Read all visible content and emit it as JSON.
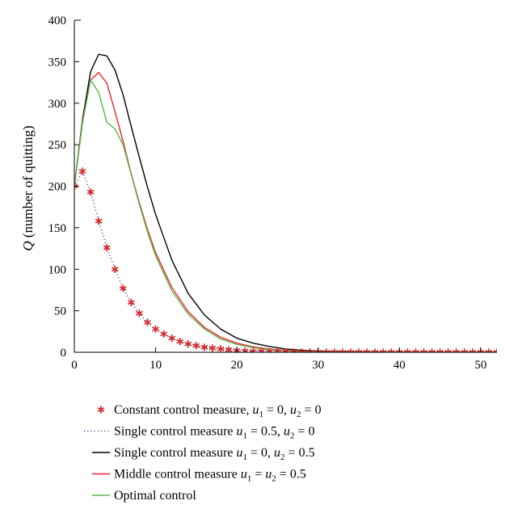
{
  "chart_data": {
    "type": "line",
    "title": "",
    "xlabel": "",
    "ylabel": "Q (number of quitting)",
    "ylabel_parts": {
      "symbol": "Q",
      "text": " (number of quitting)"
    },
    "xlim": [
      0,
      52
    ],
    "ylim": [
      0,
      400
    ],
    "xticks": [
      "0",
      "10",
      "20",
      "30",
      "40",
      "50"
    ],
    "yticks": [
      "0",
      "50",
      "100",
      "150",
      "200",
      "250",
      "300",
      "350",
      "400"
    ],
    "grid": false,
    "legend_position": "bottom",
    "series": [
      {
        "name": "Constant control measure, u1 = 0, u2 = 0",
        "legend_parts": [
          {
            "t": "Constant control measure, ",
            "s": "n"
          },
          {
            "t": "u",
            "s": "i"
          },
          {
            "t": "1",
            "s": "sub"
          },
          {
            "t": " = 0, ",
            "s": "n"
          },
          {
            "t": "u",
            "s": "i"
          },
          {
            "t": "2",
            "s": "sub"
          },
          {
            "t": " = 0",
            "s": "n"
          }
        ],
        "style": "star-markers",
        "color": "#d62728",
        "x": [
          0,
          1,
          2,
          3,
          4,
          5,
          6,
          7,
          8,
          9,
          10,
          11,
          12,
          13,
          14,
          15,
          16,
          17,
          18,
          19,
          20,
          21,
          22,
          23,
          24,
          25,
          26,
          27,
          28,
          29,
          30,
          31,
          32,
          33,
          34,
          35,
          36,
          37,
          38,
          39,
          40,
          41,
          42,
          43,
          44,
          45,
          46,
          47,
          48,
          49,
          50,
          51,
          52
        ],
        "y": [
          200,
          218,
          193,
          158,
          126,
          100,
          77,
          60,
          47,
          36,
          28,
          22,
          17,
          13,
          10,
          8,
          6,
          5,
          4,
          3,
          2,
          1.5,
          1,
          1,
          0.5,
          0.5,
          0.3,
          0.2,
          0.2,
          0.1,
          0.1,
          0,
          0,
          0,
          0,
          0,
          0,
          0,
          0,
          0,
          0,
          0,
          0,
          0,
          0,
          0,
          0,
          0,
          0,
          0,
          0,
          0,
          0
        ]
      },
      {
        "name": "Single control measure u1 = 0.5, u2 = 0",
        "legend_parts": [
          {
            "t": "Single control measure ",
            "s": "n"
          },
          {
            "t": "u",
            "s": "i"
          },
          {
            "t": "1",
            "s": "sub"
          },
          {
            "t": " = 0.5, ",
            "s": "n"
          },
          {
            "t": "u",
            "s": "i"
          },
          {
            "t": "2",
            "s": "sub"
          },
          {
            "t": " = 0",
            "s": "n"
          }
        ],
        "style": "dotted",
        "color": "#3a3aa8",
        "x": [
          0,
          1,
          2,
          3,
          4,
          5,
          6,
          7,
          8,
          9,
          10,
          11,
          12,
          13,
          14,
          15,
          16,
          17,
          18,
          19,
          20,
          21,
          22,
          23,
          24,
          25,
          26,
          27,
          28,
          29,
          30,
          31,
          32,
          33,
          34,
          35,
          36,
          37,
          38,
          39,
          40,
          41,
          42,
          43,
          44,
          45,
          46,
          47,
          48,
          49,
          50,
          51,
          52
        ],
        "y": [
          200,
          218,
          193,
          158,
          126,
          100,
          77,
          60,
          47,
          36,
          28,
          22,
          17,
          13,
          10,
          8,
          6,
          5,
          4,
          3,
          2,
          1.5,
          1,
          1,
          0.5,
          0.5,
          0.3,
          0.2,
          0.2,
          0.1,
          0.1,
          0,
          0,
          0,
          0,
          0,
          0,
          0,
          0,
          0,
          0,
          0,
          0,
          0,
          0,
          0,
          0,
          0,
          0,
          0,
          0,
          0,
          0
        ]
      },
      {
        "name": "Single control measure u1 = 0, u2 = 0.5",
        "legend_parts": [
          {
            "t": "Single control measure ",
            "s": "n"
          },
          {
            "t": "u",
            "s": "i"
          },
          {
            "t": "1",
            "s": "sub"
          },
          {
            "t": " = 0, ",
            "s": "n"
          },
          {
            "t": "u",
            "s": "i"
          },
          {
            "t": "2",
            "s": "sub"
          },
          {
            "t": " = 0.5",
            "s": "n"
          }
        ],
        "style": "solid",
        "color": "#000000",
        "x": [
          0,
          1,
          2,
          3,
          4,
          5,
          6,
          7,
          8,
          9,
          10,
          12,
          14,
          16,
          18,
          20,
          22,
          24,
          26,
          28,
          30,
          32,
          34,
          36,
          38,
          40,
          42,
          44,
          46,
          48,
          50,
          52
        ],
        "y": [
          200,
          280,
          338,
          359,
          357,
          340,
          310,
          272,
          235,
          199,
          166,
          111,
          71,
          45,
          28,
          17,
          11,
          7,
          4,
          2.5,
          1.5,
          1,
          0.6,
          0.4,
          0.2,
          0.1,
          0,
          0,
          0,
          0,
          0,
          0
        ]
      },
      {
        "name": "Middle control measure u1 = u2 = 0.5",
        "legend_parts": [
          {
            "t": "Middle control measure ",
            "s": "n"
          },
          {
            "t": "u",
            "s": "i"
          },
          {
            "t": "1",
            "s": "sub"
          },
          {
            "t": " = ",
            "s": "n"
          },
          {
            "t": "u",
            "s": "i"
          },
          {
            "t": "2",
            "s": "sub"
          },
          {
            "t": " = 0.5",
            "s": "n"
          }
        ],
        "style": "solid",
        "color": "#e8242b",
        "x": [
          0,
          1,
          2,
          3,
          4,
          5,
          6,
          7,
          8,
          9,
          10,
          12,
          14,
          16,
          18,
          20,
          22,
          24,
          26,
          28,
          30,
          32,
          34,
          36,
          38,
          40,
          42,
          44,
          46,
          48,
          50,
          52
        ],
        "y": [
          200,
          277,
          328,
          337,
          324,
          290,
          254,
          215,
          180,
          148,
          120,
          78,
          49,
          30,
          18,
          11,
          6.5,
          4,
          2.3,
          1.3,
          0.8,
          0.4,
          0.2,
          0.1,
          0,
          0,
          0,
          0,
          0,
          0,
          0,
          0
        ]
      },
      {
        "name": "Optimal control",
        "legend_parts": [
          {
            "t": "Optimal control",
            "s": "n"
          }
        ],
        "style": "solid",
        "color": "#5db84a",
        "x": [
          0,
          1,
          2,
          3,
          4,
          5,
          6,
          7,
          8,
          9,
          10,
          12,
          14,
          16,
          18,
          20,
          22,
          24,
          26,
          28,
          30,
          32,
          34,
          36,
          38,
          40,
          42,
          44,
          46,
          48,
          50,
          52
        ],
        "y": [
          200,
          276,
          328,
          313,
          277,
          269,
          250,
          214,
          178,
          145,
          116,
          74,
          46,
          28,
          16,
          9.5,
          5.5,
          3.2,
          1.8,
          1,
          0.5,
          0.3,
          0.1,
          0,
          0,
          0,
          0,
          0,
          0,
          0,
          0,
          0
        ]
      }
    ]
  }
}
